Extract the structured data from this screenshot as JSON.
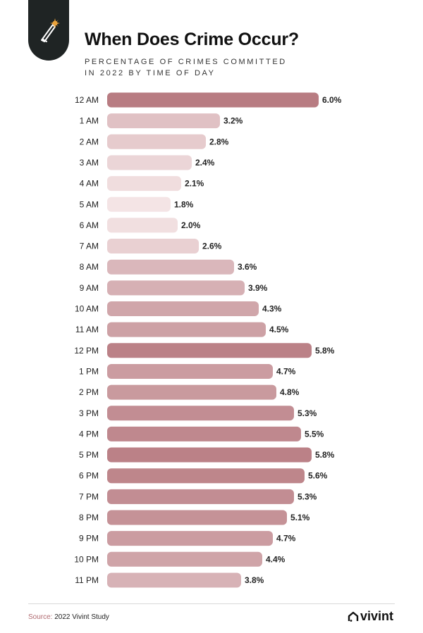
{
  "header": {
    "icon": "knife-icon",
    "title": "When Does Crime Occur?",
    "subtitle_line1": "PERCENTAGE OF CRIMES COMMITTED",
    "subtitle_line2": "IN 2022 BY TIME OF DAY"
  },
  "chart_data": {
    "type": "bar",
    "orientation": "horizontal",
    "categories": [
      "12 AM",
      "1 AM",
      "2 AM",
      "3 AM",
      "4 AM",
      "5 AM",
      "6 AM",
      "7 AM",
      "8 AM",
      "9 AM",
      "10 AM",
      "11 AM",
      "12 PM",
      "1 PM",
      "2 PM",
      "3 PM",
      "4 PM",
      "5 PM",
      "6 PM",
      "7 PM",
      "8 PM",
      "9 PM",
      "10 PM",
      "11 PM"
    ],
    "values": [
      6.0,
      3.2,
      2.8,
      2.4,
      2.1,
      1.8,
      2.0,
      2.6,
      3.6,
      3.9,
      4.3,
      4.5,
      5.8,
      4.7,
      4.8,
      5.3,
      5.5,
      5.8,
      5.6,
      5.3,
      5.1,
      4.7,
      4.4,
      3.8
    ],
    "value_labels": [
      "6.0%",
      "3.2%",
      "2.8%",
      "2.4%",
      "2.1%",
      "1.8%",
      "2.0%",
      "2.6%",
      "3.6%",
      "3.9%",
      "4.3%",
      "4.5%",
      "5.8%",
      "4.7%",
      "4.8%",
      "5.3%",
      "5.5%",
      "5.8%",
      "5.6%",
      "5.3%",
      "5.1%",
      "4.7%",
      "4.4%",
      "3.8%"
    ],
    "xlim": [
      0,
      6.0
    ],
    "colors": {
      "low": "#f4e4e5",
      "high": "#b87c82"
    },
    "grid": false,
    "legend": "none"
  },
  "footer": {
    "source_key": "Source:",
    "source_value": "2022 Vivint Study",
    "brand": "vivint",
    "brand_icon": "house-icon"
  }
}
